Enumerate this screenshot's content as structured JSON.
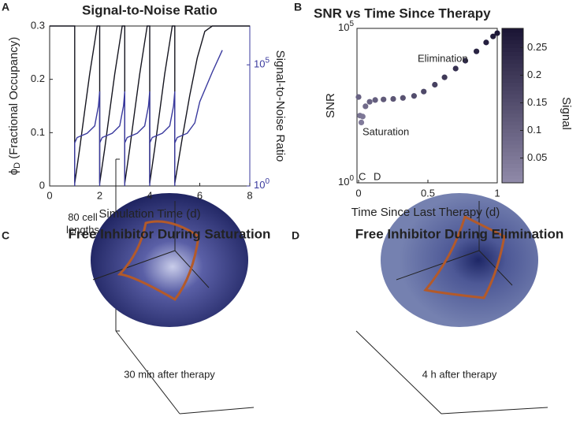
{
  "chart_data": [
    {
      "type": "line",
      "panel": "A",
      "title": "Signal-to-Noise Ratio",
      "xlabel": "Simulation Time (d)",
      "ylabel": "ϕ",
      "ylabel_sub": "D",
      "ylabel_rest": " (Fractional Occupancy)",
      "y2label": "Signal-to-Noise Ratio",
      "xlim": [
        0,
        8
      ],
      "xticks": [
        0,
        2,
        4,
        6,
        8
      ],
      "ylim": [
        0,
        0.3
      ],
      "yticks": [
        0,
        0.1,
        0.2,
        0.3
      ],
      "y2lim": [
        1,
        4000000
      ],
      "y2log": true,
      "y2ticks": [
        {
          "value": 1,
          "label": "10",
          "exponent": 0
        },
        {
          "value": 100000,
          "label": "10",
          "exponent": 5
        }
      ],
      "series": [
        {
          "name": "ϕD",
          "color": "#15151f",
          "axis": "y",
          "x": [
            0,
            1,
            1,
            1.2,
            1.4,
            1.6,
            1.8,
            1.9,
            2,
            2,
            2.2,
            2.4,
            2.6,
            2.8,
            2.9,
            3,
            3,
            3.2,
            3.4,
            3.6,
            3.8,
            3.9,
            4,
            4,
            4.2,
            4.4,
            4.6,
            4.8,
            4.9,
            5,
            5,
            5.3,
            5.6,
            5.9,
            6.2,
            6.5,
            8
          ],
          "values": [
            0.3,
            0.3,
            0.005,
            0.07,
            0.14,
            0.21,
            0.27,
            0.3,
            0.3,
            0.005,
            0.07,
            0.14,
            0.21,
            0.27,
            0.3,
            0.3,
            0.005,
            0.07,
            0.14,
            0.21,
            0.27,
            0.3,
            0.3,
            0.005,
            0.07,
            0.14,
            0.21,
            0.27,
            0.3,
            0.3,
            0.005,
            0.09,
            0.17,
            0.24,
            0.29,
            0.3,
            0.3
          ]
        },
        {
          "name": "Signal-to-Noise Ratio",
          "color": "#3a3a9e",
          "axis": "y2",
          "x": [
            1,
            1,
            1.1,
            1.5,
            1.8,
            1.95,
            2,
            2,
            2,
            2.1,
            2.5,
            2.8,
            2.95,
            3,
            3,
            3,
            3.1,
            3.5,
            3.8,
            3.95,
            4,
            4,
            4,
            4.1,
            4.5,
            4.8,
            4.95,
            5,
            5,
            5,
            5.1,
            5.5,
            5.8,
            6,
            6.5,
            6.9
          ],
          "values": [
            1,
            60,
            100,
            150,
            300,
            2000,
            8000,
            1,
            60,
            100,
            150,
            300,
            2000,
            8000,
            1,
            60,
            100,
            150,
            300,
            2000,
            8000,
            1,
            60,
            100,
            150,
            300,
            2000,
            8000,
            1,
            60,
            100,
            150,
            400,
            3000,
            50000,
            400000
          ]
        }
      ]
    },
    {
      "type": "scatter",
      "panel": "B",
      "title": "SNR vs Time Since Therapy",
      "xlabel": "Time Since Last Therapy (d)",
      "ylabel": "SNR",
      "xlim": [
        0,
        1
      ],
      "xticks": [
        0,
        0.5,
        1
      ],
      "ylim": [
        1,
        100000
      ],
      "ylog": true,
      "yticks": [
        {
          "value": 1,
          "label": "10",
          "exponent": 0
        },
        {
          "value": 100000,
          "label": "10",
          "exponent": 5
        }
      ],
      "annotations": [
        "Elimination",
        "Saturation",
        "C",
        "D"
      ],
      "x": [
        0,
        0.01,
        0.02,
        0.03,
        0.05,
        0.08,
        0.12,
        0.18,
        0.25,
        0.32,
        0.4,
        0.47,
        0.55,
        0.62,
        0.7,
        0.77,
        0.85,
        0.92,
        0.97,
        1.0
      ],
      "values": [
        600,
        150,
        90,
        140,
        300,
        420,
        480,
        500,
        520,
        560,
        650,
        900,
        1500,
        2600,
        5000,
        9000,
        18000,
        35000,
        55000,
        70000
      ],
      "signal": [
        0.1,
        0.06,
        0.04,
        0.05,
        0.08,
        0.1,
        0.11,
        0.12,
        0.13,
        0.14,
        0.15,
        0.16,
        0.18,
        0.2,
        0.22,
        0.23,
        0.25,
        0.26,
        0.27,
        0.28
      ],
      "colorbar": {
        "label": "Signal",
        "clim": [
          0.005,
          0.285
        ],
        "ticks": [
          0.05,
          0.1,
          0.15,
          0.2,
          0.25
        ],
        "colors": [
          "#908aa9",
          "#1b1535"
        ]
      }
    }
  ],
  "panels": [
    {
      "panel": "C",
      "title": "Free Inhibitor During Saturation",
      "caption": "30 min after therapy",
      "scale_label": "80 cell lengths"
    },
    {
      "panel": "D",
      "title": "Free Inhibitor During Elimination",
      "caption": "4 h after therapy"
    }
  ]
}
